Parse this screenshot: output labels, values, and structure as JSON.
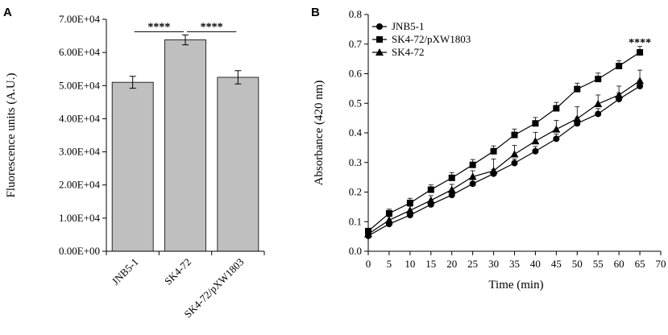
{
  "panels": {
    "a": {
      "letter": "A"
    },
    "b": {
      "letter": "B"
    }
  },
  "chart_data": [
    {
      "type": "bar",
      "panel": "A",
      "title": "",
      "xlabel": "",
      "ylabel": "Fluorescence units (A.U.)",
      "categories": [
        "JNB5-1",
        "SK4-72",
        "SK4-72/pXW1803"
      ],
      "values": [
        51000,
        63800,
        52500
      ],
      "errors": [
        1800,
        1500,
        2000
      ],
      "ylim": [
        0,
        70000
      ],
      "yticks": [
        0,
        10000,
        20000,
        30000,
        40000,
        50000,
        60000,
        70000
      ],
      "ytick_labels": [
        "0.00E+00",
        "1.00E+04",
        "2.00E+04",
        "3.00E+04",
        "4.00E+04",
        "5.00E+04",
        "6.00E+04",
        "7.00E+04"
      ],
      "bar_color": "#bfbfbf",
      "significance": [
        {
          "from": 0,
          "to": 1,
          "label": "****",
          "y": 68200
        },
        {
          "from": 1,
          "to": 2,
          "label": "****",
          "y": 68200
        }
      ]
    },
    {
      "type": "line",
      "panel": "B",
      "title": "",
      "xlabel": "Time (min)",
      "ylabel": "Absorbance (420 nm)",
      "xlim": [
        0,
        70
      ],
      "ylim": [
        0,
        0.8
      ],
      "xticks": [
        0,
        5,
        10,
        15,
        20,
        25,
        30,
        35,
        40,
        45,
        50,
        55,
        60,
        65,
        70
      ],
      "yticks": [
        0,
        0.1,
        0.2,
        0.3,
        0.4,
        0.5,
        0.6,
        0.7,
        0.8
      ],
      "xtick_labels": [
        "0",
        "5",
        "10",
        "15",
        "20",
        "25",
        "30",
        "35",
        "40",
        "45",
        "50",
        "55",
        "60",
        "65",
        "70"
      ],
      "ytick_labels": [
        "0.0",
        "0.1",
        "0.2",
        "0.3",
        "0.4",
        "0.5",
        "0.6",
        "0.7",
        "0.8"
      ],
      "x": [
        0,
        5,
        10,
        15,
        20,
        25,
        30,
        35,
        40,
        45,
        50,
        55,
        60,
        65
      ],
      "series": [
        {
          "name": "JNB5-1",
          "marker": "circle",
          "values": [
            0.052,
            0.092,
            0.122,
            0.158,
            0.19,
            0.228,
            0.262,
            0.298,
            0.338,
            0.38,
            0.432,
            0.464,
            0.514,
            0.558
          ],
          "errors": [
            0.008,
            0.01,
            0.01,
            0.012,
            0.012,
            0.014,
            0.014,
            0.014,
            0.016,
            0.016,
            0.02,
            0.018,
            0.02,
            0.018
          ]
        },
        {
          "name": "SK4-72/pXW1803",
          "marker": "square",
          "values": [
            0.068,
            0.128,
            0.163,
            0.208,
            0.248,
            0.292,
            0.338,
            0.393,
            0.432,
            0.483,
            0.548,
            0.582,
            0.626,
            0.672
          ],
          "errors": [
            0.01,
            0.014,
            0.016,
            0.016,
            0.018,
            0.018,
            0.018,
            0.02,
            0.02,
            0.02,
            0.02,
            0.02,
            0.018,
            0.02
          ]
        },
        {
          "name": "SK4-72",
          "marker": "triangle",
          "values": [
            0.058,
            0.105,
            0.138,
            0.172,
            0.208,
            0.252,
            0.272,
            0.328,
            0.372,
            0.412,
            0.448,
            0.498,
            0.528,
            0.576
          ],
          "errors": [
            0.01,
            0.012,
            0.014,
            0.016,
            0.018,
            0.02,
            0.04,
            0.03,
            0.03,
            0.03,
            0.04,
            0.03,
            0.03,
            0.036
          ]
        }
      ],
      "legend": "top-left",
      "annotations": [
        {
          "text": "****",
          "x": 65,
          "y": 0.705
        }
      ]
    }
  ]
}
